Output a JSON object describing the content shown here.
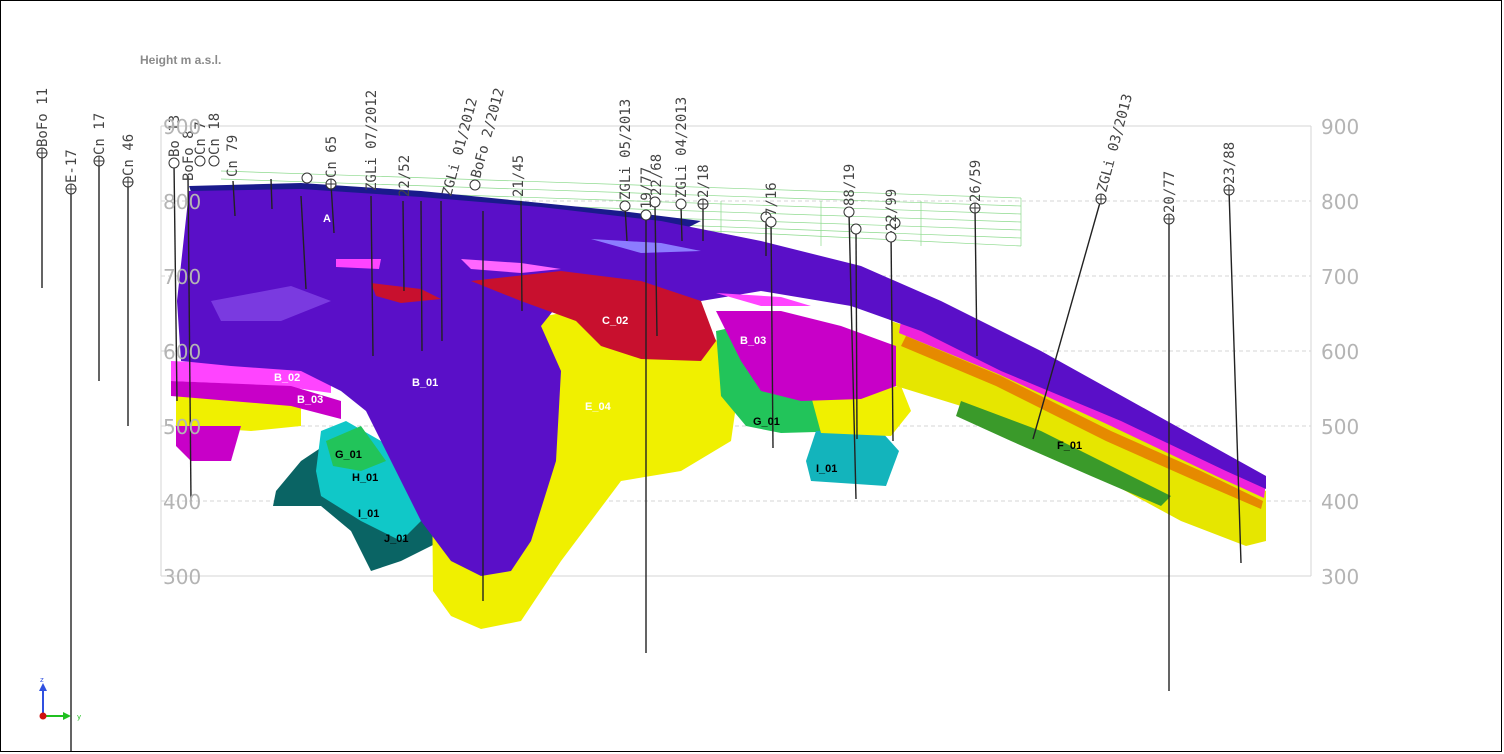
{
  "axis": {
    "title": "Height m a.s.l.",
    "ticks": [
      "300",
      "400",
      "500",
      "600",
      "700",
      "800",
      "900"
    ]
  },
  "units": [
    {
      "label": "A",
      "color": "#1a1a8c",
      "text_color": "#ffffff"
    },
    {
      "label": "B_01",
      "color": "#5a0fc8",
      "text_color": "#ffffff"
    },
    {
      "label": "B_02",
      "color": "#ff44ff",
      "text_color": "#ffffff"
    },
    {
      "label": "B_03",
      "color": "#c800c8",
      "text_color": "#ffffff"
    },
    {
      "label": "C_02",
      "color": "#c8102e",
      "text_color": "#ffffff"
    },
    {
      "label": "E_04",
      "color": "#f0f000",
      "text_color": "#ffffff"
    },
    {
      "label": "F_01",
      "color": "#e6e600",
      "text_color": "#000000"
    },
    {
      "label": "G_01",
      "color": "#22c45a",
      "text_color": "#000000"
    },
    {
      "label": "H_01",
      "color": "#10c8c8",
      "text_color": "#000000"
    },
    {
      "label": "I_01",
      "color": "#13b4bc",
      "text_color": "#000000"
    },
    {
      "label": "J_01",
      "color": "#0a6464",
      "text_color": "#000000"
    }
  ],
  "boreholes": [
    "BoFo 11",
    "E-17",
    "Cn 17",
    "Cn 46",
    "Bo 13",
    "BoFo 8",
    "Cn 7",
    "Cn 18",
    "Cn 79",
    "Cn 65",
    "ZGLi 07/2012",
    "ZGLi 01/2012",
    "BoFo 2/2012",
    "ZGLi 05/2013",
    "ZGLi 04/2013",
    "2/18",
    "26/59",
    "ZGLi 03/2013",
    "20/77",
    "23/88",
    "88/19",
    "21/45",
    "19/77",
    "22/68",
    "7/16",
    "22/99",
    "22/52"
  ],
  "triad": {
    "z": "z",
    "y": "y"
  }
}
